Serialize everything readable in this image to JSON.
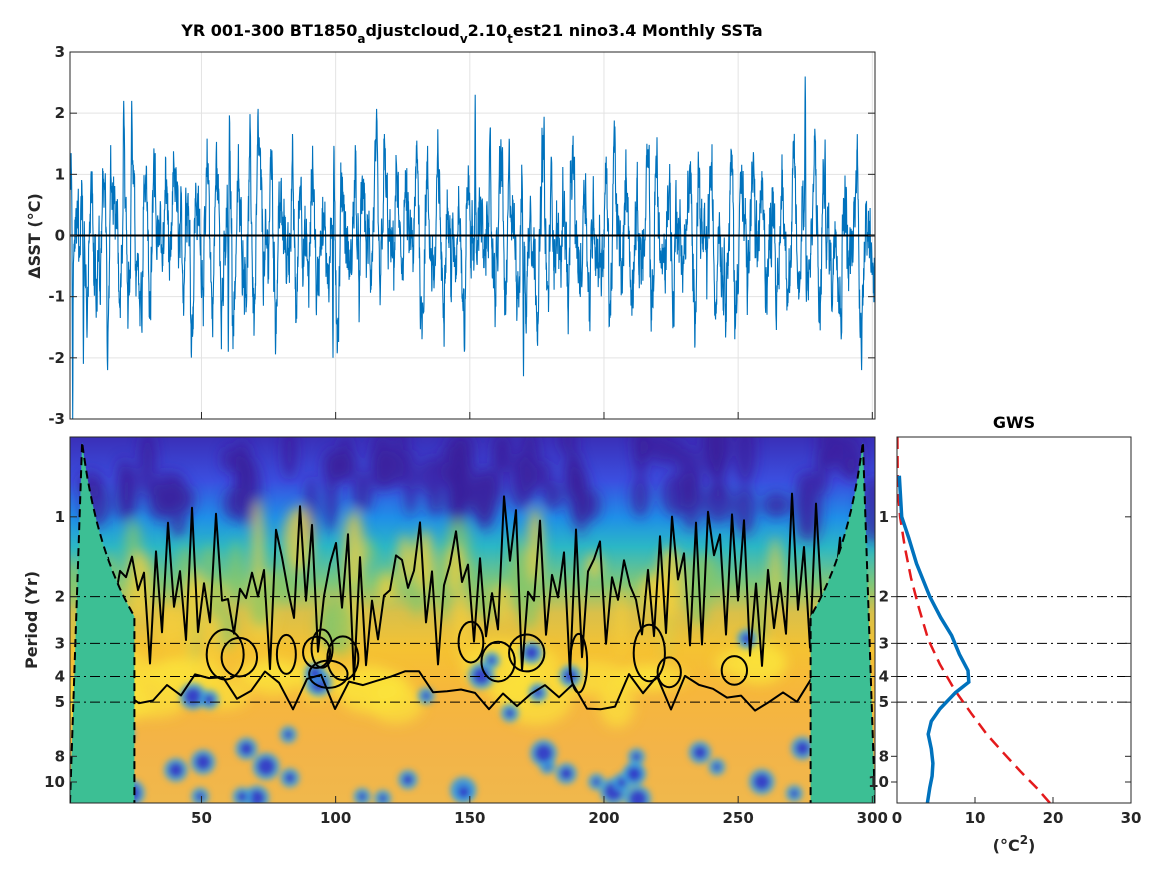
{
  "chart_data": [
    {
      "type": "line",
      "title_parts": [
        "YR 001-300 BT1850",
        "a",
        "djustcloud",
        "v",
        "2.10",
        "t",
        "est21 nino3.4 Monthly SSTa"
      ],
      "ylabel": "ΔSST (°C)",
      "xlim": [
        1,
        301
      ],
      "ylim": [
        -3,
        3
      ],
      "xticks": [
        50,
        100,
        150,
        200,
        250,
        300
      ],
      "yticks": [
        -3,
        -2,
        -1,
        0,
        1,
        2,
        3
      ],
      "grid": true,
      "series": [
        {
          "color": "#0072BD",
          "sample_points": [
            [
              2,
              -3.0
            ],
            [
              6,
              -2.1
            ],
            [
              15,
              -2.2
            ],
            [
              21,
              2.2
            ],
            [
              24,
              2.2
            ],
            [
              60,
              -1.9
            ],
            [
              99,
              -2.0
            ],
            [
              148,
              -1.9
            ],
            [
              152,
              2.3
            ],
            [
              170,
              -2.3
            ],
            [
              275,
              2.6
            ],
            [
              296,
              -2.2
            ]
          ]
        }
      ],
      "reference_line_y": 0
    },
    {
      "type": "heatmap",
      "ylabel": "Period (Yr)",
      "xlim": [
        1,
        301
      ],
      "ylim": [
        0.5,
        12
      ],
      "yscale": "log",
      "yreverse": true,
      "xticks": [
        50,
        100,
        150,
        200,
        250,
        300
      ],
      "yticks": [
        1,
        2,
        3,
        4,
        5,
        8,
        10
      ],
      "reference_periods": [
        2,
        3,
        4,
        5
      ],
      "colormap": "parula"
    },
    {
      "type": "line",
      "title": "GWS",
      "xlabel_parts": [
        "(°C",
        "2",
        ")"
      ],
      "xlim": [
        0,
        30
      ],
      "xticks": [
        0,
        10,
        20,
        30
      ],
      "yticks": [
        1,
        2,
        3,
        4,
        5,
        8,
        10
      ],
      "yscale": "log",
      "reference_periods": [
        2,
        3,
        4,
        5
      ],
      "series": [
        {
          "color": "#0072BD",
          "style": "solid",
          "x": [
            0.3,
            0.6,
            1.5,
            2.5,
            4.2,
            5.6,
            7.0,
            8.0,
            9.1,
            9.2,
            7.5,
            5.5,
            4.4,
            4.0,
            4.4,
            4.6,
            4.5,
            4.2,
            3.9
          ],
          "y": [
            0.7,
            1.0,
            1.2,
            1.5,
            2.0,
            2.4,
            2.8,
            3.3,
            3.8,
            4.2,
            4.6,
            5.3,
            5.9,
            6.6,
            7.5,
            8.5,
            9.5,
            10.5,
            12.0
          ]
        },
        {
          "color": "#E41A1C",
          "style": "dashed",
          "x": [
            0.05,
            0.1,
            0.4,
            1.0,
            1.8,
            2.8,
            4.0,
            5.5,
            7.4,
            9.5,
            11.5,
            13.7,
            15.8,
            18.0,
            19.6
          ],
          "y": [
            0.5,
            0.8,
            1.0,
            1.3,
            1.7,
            2.2,
            2.9,
            3.6,
            4.5,
            5.5,
            6.6,
            7.8,
            9.1,
            10.6,
            12.0
          ]
        }
      ]
    }
  ]
}
